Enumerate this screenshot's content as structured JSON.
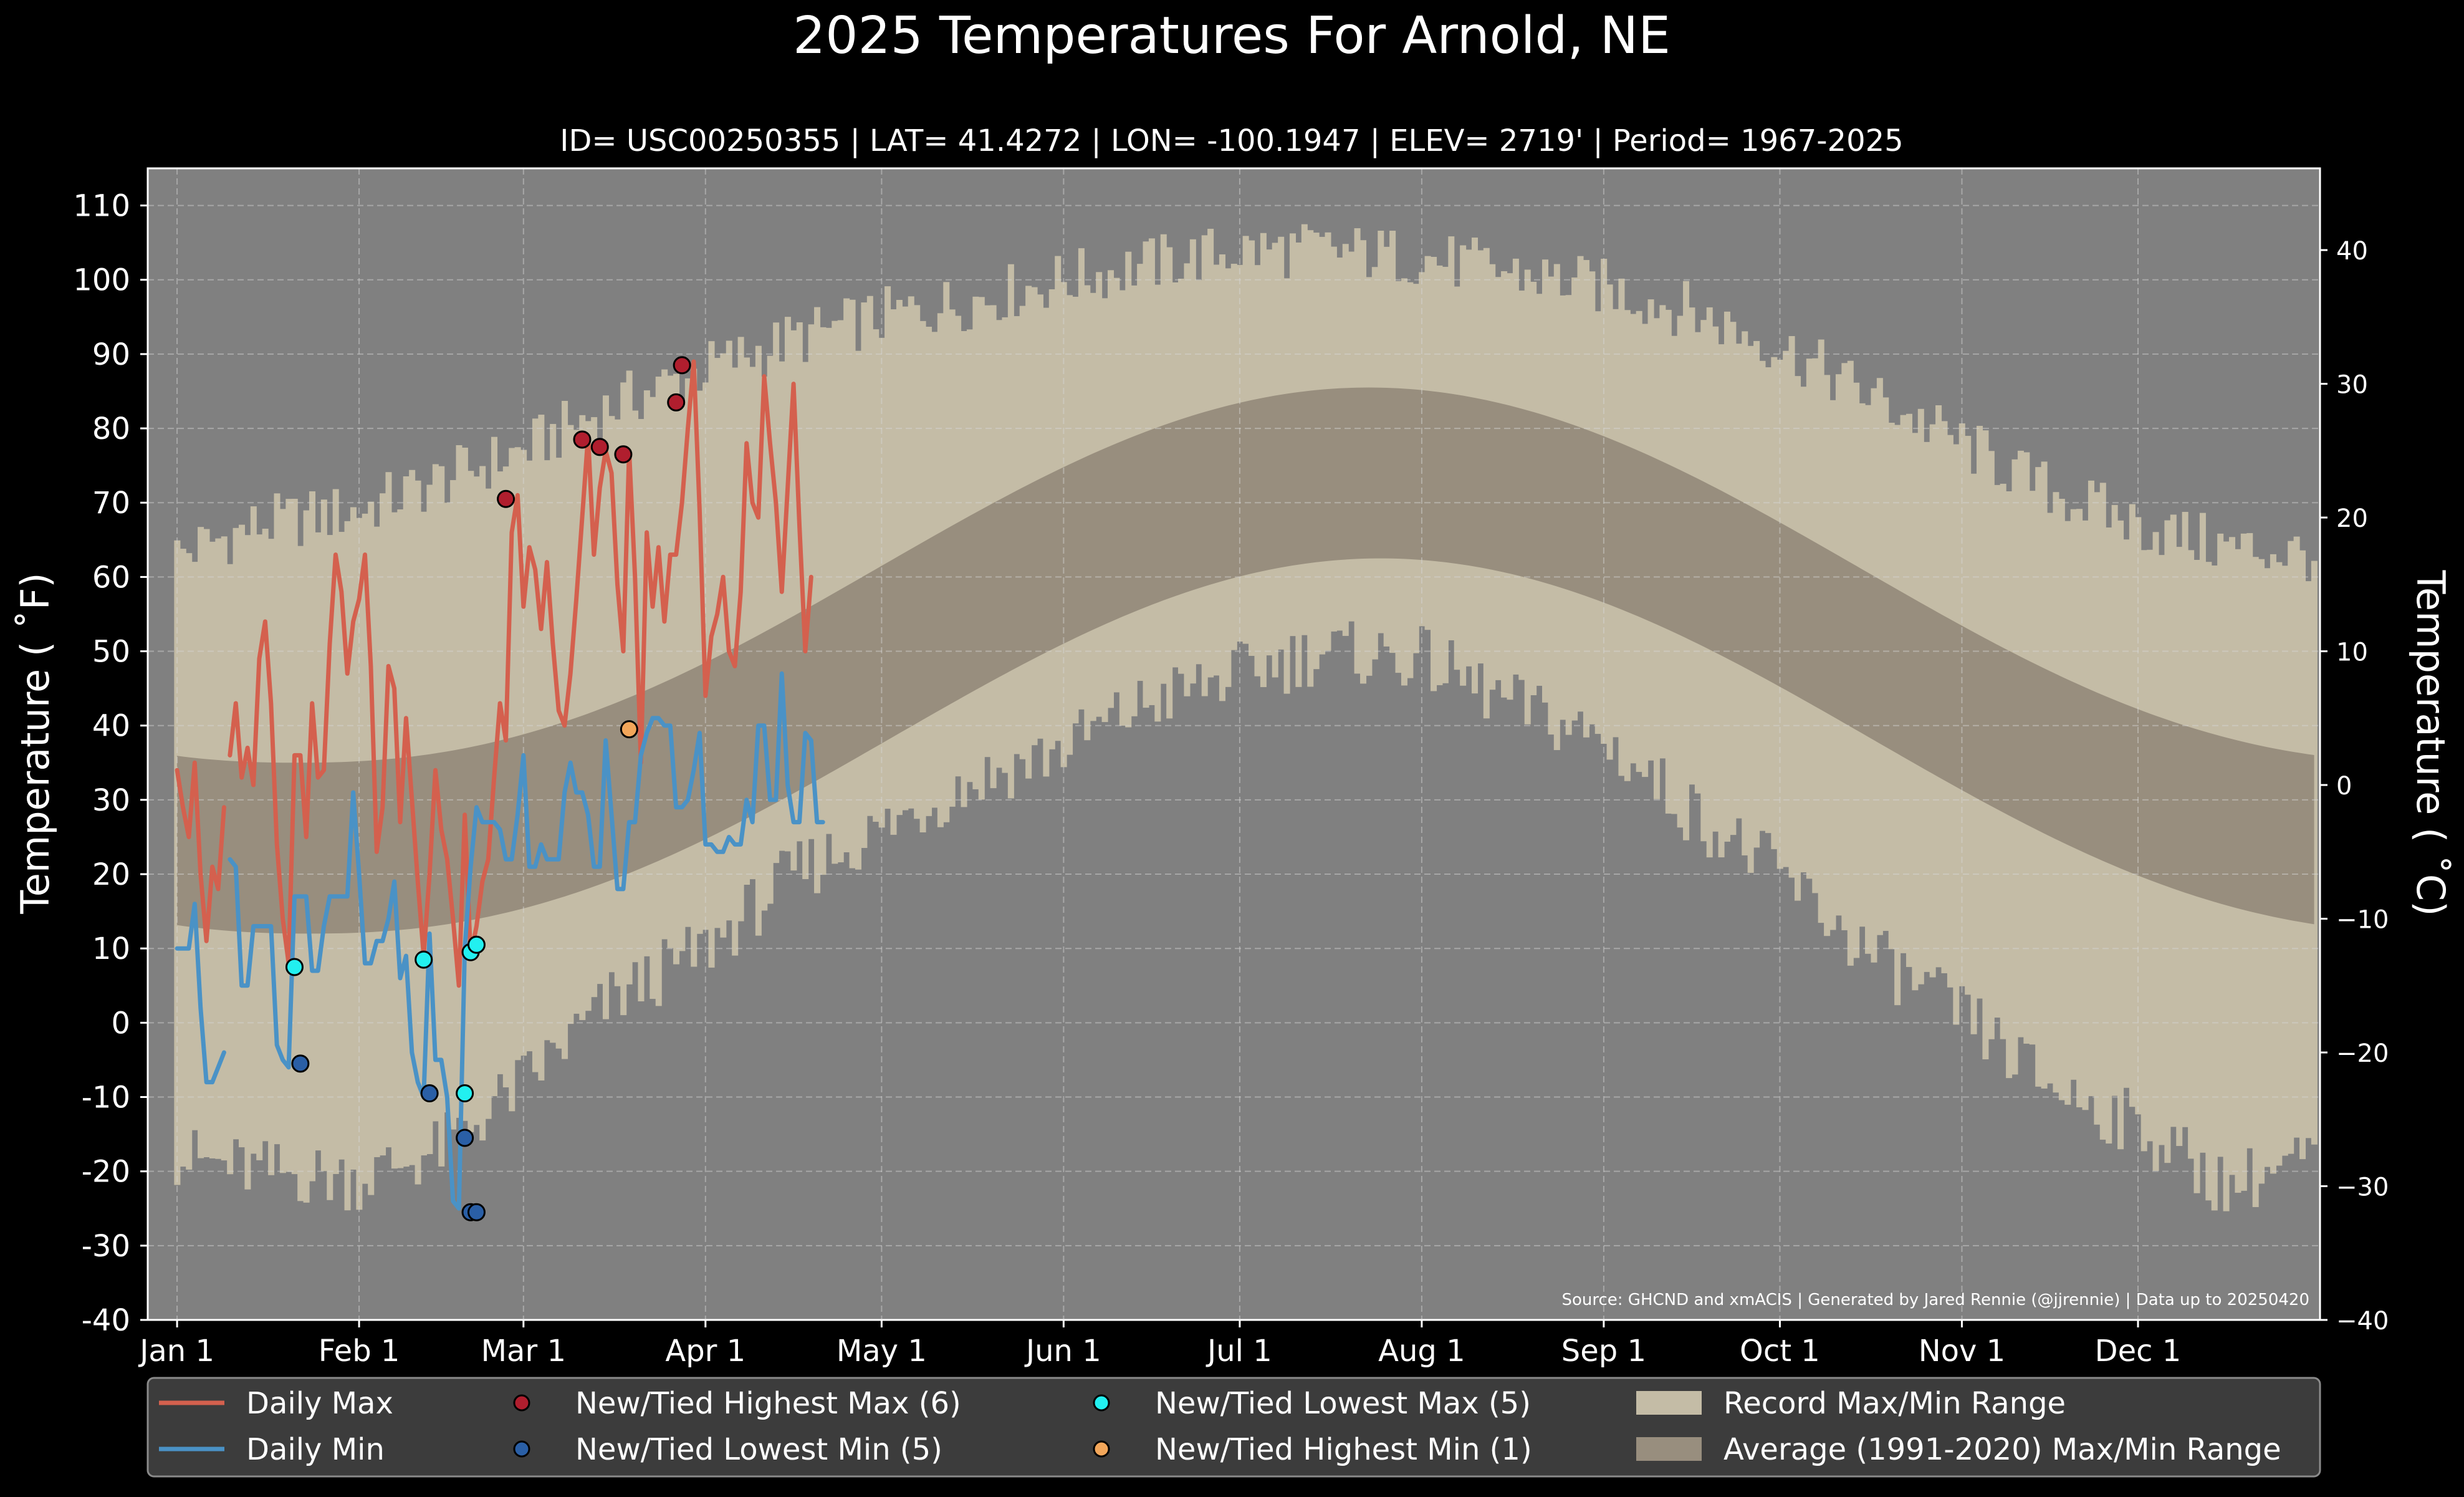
{
  "colors": {
    "background": "#000000",
    "plot_bg": "#808080",
    "record_range": "#c4bca6",
    "normal_range": "#988e7e",
    "daily_max": "#d4604e",
    "daily_min": "#4a92c6",
    "new_high_max": "#b01e2e",
    "new_low_min": "#2a5fa6",
    "new_low_max": "#22f0f0",
    "new_high_min": "#f2a65a",
    "text": "#ffffff",
    "legend_bg": "#3c3c3c"
  },
  "chart_data": {
    "type": "line",
    "title": "2025 Temperatures For Arnold, NE",
    "subtitle": "ID= USC00250355 | LAT= 41.4272 | LON= -100.1947 | ELEV= 2719' | Period= 1967-2025",
    "ylabel_left": "Temperature ($^\\circ$F)",
    "ylabel_left_text": "Temperature ( ˚F)",
    "ylabel_right_text": "Temperature ( ˚C)",
    "ylim": [
      -40,
      115
    ],
    "xlim": [
      -4,
      366
    ],
    "yticks_f": [
      -40,
      -30,
      -20,
      -10,
      0,
      10,
      20,
      30,
      40,
      50,
      60,
      70,
      80,
      90,
      100,
      110
    ],
    "yticks_c": [
      -40,
      -30,
      -20,
      -10,
      0,
      10,
      20,
      30,
      40
    ],
    "xticks": [
      {
        "day": 1,
        "label": "Jan 1"
      },
      {
        "day": 32,
        "label": "Feb 1"
      },
      {
        "day": 60,
        "label": "Mar 1"
      },
      {
        "day": 91,
        "label": "Apr 1"
      },
      {
        "day": 121,
        "label": "May 1"
      },
      {
        "day": 152,
        "label": "Jun 1"
      },
      {
        "day": 182,
        "label": "Jul 1"
      },
      {
        "day": 213,
        "label": "Aug 1"
      },
      {
        "day": 244,
        "label": "Sep 1"
      },
      {
        "day": 274,
        "label": "Oct 1"
      },
      {
        "day": 305,
        "label": "Nov 1"
      },
      {
        "day": 335,
        "label": "Dec 1"
      }
    ],
    "grid": true,
    "source_note": "Source: GHCND and xmACIS | Generated by Jared Rennie (@jjrennie) | Data up to 20250420",
    "normals": {
      "max_winter": 35,
      "max_summer_peak": 85.5,
      "max_peak_day": 204,
      "min_winter": 12,
      "min_summer_peak": 62.5,
      "min_peak_day": 206
    },
    "record_max_envelope": {
      "days": [
        1,
        15,
        32,
        46,
        60,
        75,
        91,
        106,
        121,
        135,
        152,
        166,
        182,
        196,
        213,
        228,
        244,
        258,
        274,
        288,
        305,
        319,
        335,
        350,
        365
      ],
      "values": [
        63,
        67,
        69,
        73,
        77,
        83,
        88,
        92,
        95,
        97,
        100,
        102,
        104,
        104,
        103,
        101,
        99,
        96,
        91,
        85,
        78,
        72,
        67,
        64,
        63
      ]
    },
    "record_min_envelope": {
      "days": [
        1,
        15,
        32,
        46,
        60,
        75,
        91,
        106,
        121,
        135,
        152,
        166,
        182,
        196,
        213,
        228,
        244,
        258,
        274,
        288,
        305,
        319,
        335,
        350,
        365
      ],
      "values": [
        -18,
        -20,
        -21,
        -17,
        -8,
        3,
        10,
        20,
        26,
        32,
        37,
        43,
        47,
        50,
        49,
        43,
        38,
        29,
        20,
        10,
        1,
        -8,
        -14,
        -22,
        -18
      ]
    },
    "series": [
      {
        "name": "Daily Max",
        "segments": [
          {
            "start_day": 1,
            "values": [
              34,
              29,
              25,
              35,
              20,
              11,
              21,
              18,
              29
            ]
          },
          {
            "start_day": 10,
            "values": [
              36,
              43,
              33,
              37,
              32,
              49,
              54,
              43,
              24,
              14,
              8,
              36,
              36,
              25,
              43,
              33,
              34,
              51,
              63,
              58,
              47,
              54,
              57,
              63,
              48,
              23,
              29,
              48,
              45,
              27,
              41,
              30,
              19,
              9,
              20,
              34,
              26,
              22,
              14,
              5,
              28,
              9,
              13,
              19,
              22,
              33,
              43,
              38,
              66,
              71,
              56,
              64,
              61,
              53,
              62,
              51,
              42,
              40,
              47,
              57,
              68,
              79,
              63,
              72,
              77,
              74,
              59,
              50,
              77,
              60,
              35,
              66,
              56,
              64,
              54,
              63,
              63,
              70,
              80,
              89,
              69,
              44,
              52,
              55,
              60,
              50,
              48,
              58,
              78,
              70,
              68,
              87,
              78,
              70,
              58,
              72,
              86,
              67,
              50,
              60
            ]
          }
        ]
      },
      {
        "name": "Daily Min",
        "segments": [
          {
            "start_day": 1,
            "values": [
              10,
              10,
              10,
              16,
              2,
              -8,
              -8,
              -6,
              -4
            ]
          },
          {
            "start_day": 10,
            "values": [
              22,
              21,
              5,
              5,
              13,
              13,
              13,
              13,
              -3,
              -5,
              -6,
              17,
              17,
              17,
              7,
              7,
              13,
              17,
              17,
              17,
              17,
              31,
              20,
              8,
              8,
              11,
              11,
              14,
              19,
              6,
              9,
              -4,
              -8,
              -10,
              12,
              -5,
              -5,
              -10,
              -24,
              -25,
              10,
              21,
              29,
              27,
              27,
              27,
              26,
              22,
              22,
              28,
              36,
              21,
              21,
              24,
              22,
              22,
              22,
              31,
              35,
              31,
              31,
              28,
              21,
              21,
              38,
              28,
              18,
              18,
              27,
              27,
              36,
              39,
              41,
              41,
              40,
              40,
              29,
              29,
              30,
              34,
              39,
              24,
              24,
              23,
              23,
              25,
              24,
              24,
              30,
              27,
              40,
              40,
              30,
              30,
              47,
              32,
              27,
              27,
              39,
              38,
              27,
              27
            ]
          }
        ]
      }
    ],
    "records": [
      {
        "name": "New/Tied Highest Max (6)",
        "kind": "new_high_max",
        "points": [
          [
            57,
            70.5
          ],
          [
            70,
            78.5
          ],
          [
            73,
            77.5
          ],
          [
            77,
            76.5
          ],
          [
            86,
            83.5
          ],
          [
            87,
            88.5
          ]
        ]
      },
      {
        "name": "New/Tied Lowest Min (5)",
        "kind": "new_low_min",
        "points": [
          [
            22,
            -5.5
          ],
          [
            44,
            -9.5
          ],
          [
            50,
            -15.5
          ],
          [
            51,
            -25.5
          ],
          [
            52,
            -25.5
          ]
        ]
      },
      {
        "name": "New/Tied Lowest Max (5)",
        "kind": "new_low_max",
        "points": [
          [
            21,
            7.5
          ],
          [
            43,
            8.5
          ],
          [
            50,
            -9.5
          ],
          [
            51,
            9.5
          ],
          [
            52,
            10.5
          ]
        ]
      },
      {
        "name": "New/Tied Highest Min (1)",
        "kind": "new_high_min",
        "points": [
          [
            78,
            39.5
          ]
        ]
      }
    ],
    "legend": [
      {
        "label": "Daily Max",
        "kind": "line",
        "color_key": "daily_max"
      },
      {
        "label": "Daily Min",
        "kind": "line",
        "color_key": "daily_min"
      },
      {
        "label": "New/Tied Highest Max (6)",
        "kind": "dot",
        "color_key": "new_high_max"
      },
      {
        "label": "New/Tied Lowest Min (5)",
        "kind": "dot",
        "color_key": "new_low_min"
      },
      {
        "label": "New/Tied Lowest Max (5)",
        "kind": "dot",
        "color_key": "new_low_max"
      },
      {
        "label": "New/Tied Highest Min (1)",
        "kind": "dot",
        "color_key": "new_high_min"
      },
      {
        "label": "Record Max/Min Range",
        "kind": "patch",
        "color_key": "record_range"
      },
      {
        "label": "Average (1991-2020) Max/Min Range",
        "kind": "patch",
        "color_key": "normal_range"
      }
    ],
    "legend_position": "bottom"
  }
}
